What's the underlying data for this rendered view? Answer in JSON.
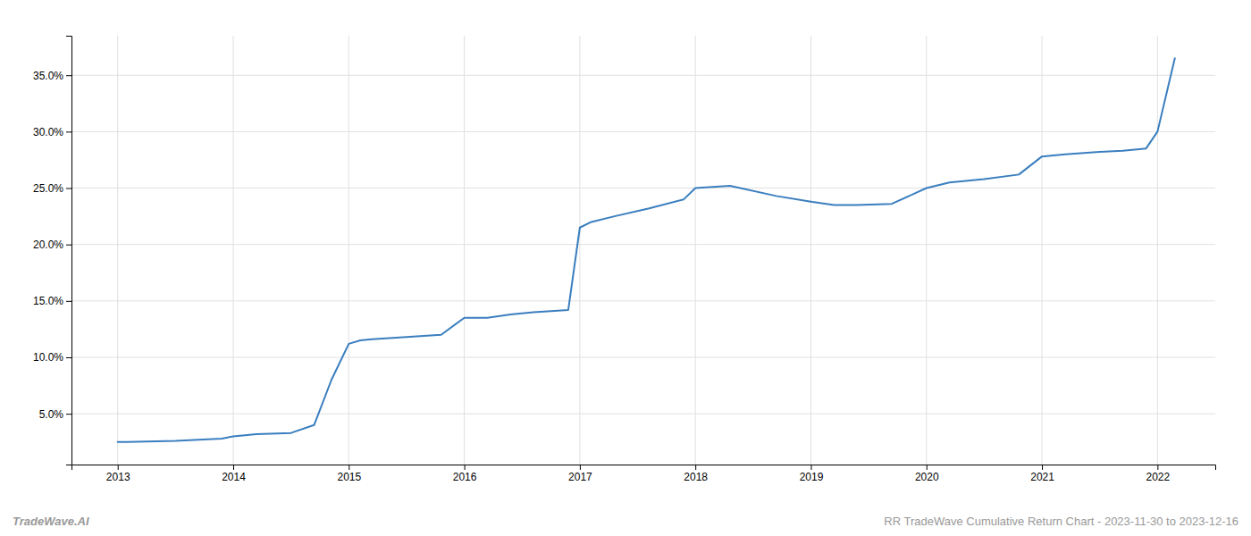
{
  "chart_data": {
    "type": "line",
    "x": [
      2013.0,
      2013.08,
      2013.5,
      2013.9,
      2014.0,
      2014.1,
      2014.2,
      2014.5,
      2014.7,
      2014.85,
      2015.0,
      2015.1,
      2015.2,
      2015.5,
      2015.8,
      2016.0,
      2016.2,
      2016.4,
      2016.6,
      2016.9,
      2017.0,
      2017.1,
      2017.3,
      2017.6,
      2017.9,
      2018.0,
      2018.15,
      2018.3,
      2018.7,
      2019.0,
      2019.2,
      2019.4,
      2019.7,
      2020.0,
      2020.2,
      2020.5,
      2020.8,
      2021.0,
      2021.2,
      2021.5,
      2021.7,
      2021.9,
      2022.0,
      2022.15
    ],
    "values": [
      2.5,
      2.5,
      2.6,
      2.8,
      3.0,
      3.1,
      3.2,
      3.3,
      4.0,
      8.0,
      11.2,
      11.5,
      11.6,
      11.8,
      12.0,
      13.5,
      13.5,
      13.8,
      14.0,
      14.2,
      21.5,
      22.0,
      22.5,
      23.2,
      24.0,
      25.0,
      25.1,
      25.2,
      24.3,
      23.8,
      23.5,
      23.5,
      23.6,
      25.0,
      25.5,
      25.8,
      26.2,
      27.8,
      28.0,
      28.2,
      28.3,
      28.5,
      30.0,
      36.5
    ],
    "color": "#3a7ebf",
    "xlim": [
      2012.6,
      2022.5
    ],
    "ylim": [
      0.5,
      38.5
    ],
    "xticks": [
      2013,
      2014,
      2015,
      2016,
      2017,
      2018,
      2019,
      2020,
      2021,
      2022
    ],
    "yticks": [
      {
        "value": 5.0,
        "label": "5.0%"
      },
      {
        "value": 10.0,
        "label": "10.0%"
      },
      {
        "value": 15.0,
        "label": "15.0%"
      },
      {
        "value": 20.0,
        "label": "20.0%"
      },
      {
        "value": 25.0,
        "label": "25.0%"
      },
      {
        "value": 30.0,
        "label": "30.0%"
      },
      {
        "value": 35.0,
        "label": "35.0%"
      }
    ],
    "grid": true,
    "annotations": [
      "TradeWave.AI",
      "RR TradeWave Cumulative Return Chart - 2023-11-30 to 2023-12-16"
    ]
  }
}
